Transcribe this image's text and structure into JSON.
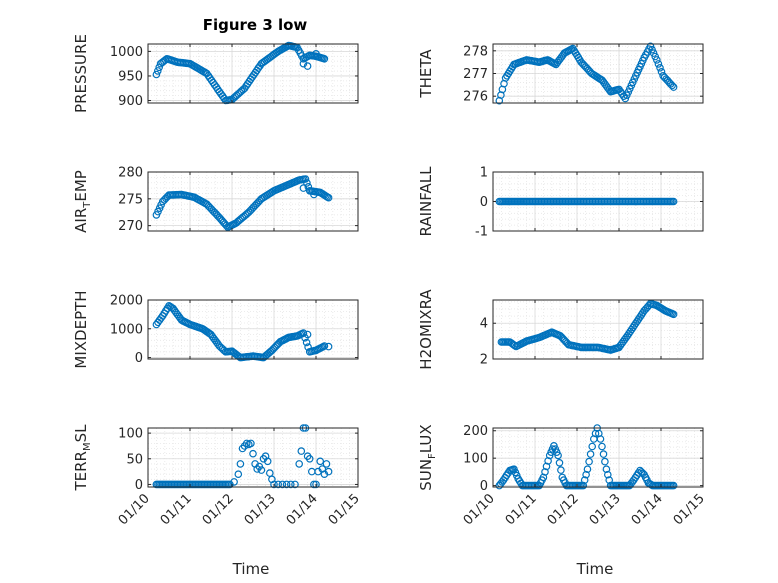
{
  "figure": {
    "title": "Figure 3 low",
    "marker_color": "#0072BD",
    "grid_color": "#d9d9d9",
    "axis_color": "#262626"
  },
  "chart_data": [
    {
      "type": "scatter",
      "ylabel": "PRESSURE",
      "ylim": [
        895,
        1015
      ],
      "yticks": [
        900,
        950,
        1000
      ],
      "xlim": [
        0,
        5
      ],
      "xticks": [
        "01/10",
        "01/11",
        "01/12",
        "01/13",
        "01/14",
        "01/15"
      ],
      "show_xticklabels": false,
      "knots": [
        [
          0.2,
          953
        ],
        [
          0.3,
          975
        ],
        [
          0.45,
          985
        ],
        [
          0.7,
          978
        ],
        [
          1.0,
          975
        ],
        [
          1.4,
          955
        ],
        [
          1.7,
          918
        ],
        [
          1.85,
          900
        ],
        [
          2.0,
          902
        ],
        [
          2.3,
          925
        ],
        [
          2.7,
          975
        ],
        [
          3.1,
          1000
        ],
        [
          3.35,
          1012
        ],
        [
          3.55,
          1008
        ],
        [
          3.7,
          985
        ],
        [
          3.85,
          992
        ],
        [
          4.0,
          990
        ],
        [
          4.2,
          985
        ]
      ],
      "extra_points": [
        [
          3.7,
          975
        ],
        [
          3.8,
          970
        ],
        [
          4.0,
          995
        ]
      ],
      "points_per_day": 28
    },
    {
      "type": "scatter",
      "ylabel": "THETA",
      "ylim": [
        275.7,
        278.3
      ],
      "yticks": [
        276,
        277,
        278
      ],
      "xlim": [
        0,
        5
      ],
      "xticks": [
        "01/10",
        "01/11",
        "01/12",
        "01/13",
        "01/14",
        "01/15"
      ],
      "show_xticklabels": false,
      "knots": [
        [
          0.15,
          275.8
        ],
        [
          0.3,
          276.8
        ],
        [
          0.5,
          277.4
        ],
        [
          0.8,
          277.6
        ],
        [
          1.1,
          277.5
        ],
        [
          1.3,
          277.6
        ],
        [
          1.5,
          277.4
        ],
        [
          1.7,
          277.9
        ],
        [
          1.9,
          278.1
        ],
        [
          2.1,
          277.5
        ],
        [
          2.35,
          277.0
        ],
        [
          2.6,
          276.7
        ],
        [
          2.8,
          276.2
        ],
        [
          3.0,
          276.3
        ],
        [
          3.15,
          275.9
        ],
        [
          3.4,
          276.9
        ],
        [
          3.6,
          277.7
        ],
        [
          3.75,
          278.2
        ],
        [
          3.9,
          277.6
        ],
        [
          4.05,
          276.9
        ],
        [
          4.3,
          276.4
        ]
      ],
      "extra_points": [],
      "points_per_day": 28
    },
    {
      "type": "scatter",
      "ylabel": "AIR",
      "ylabel_sub": "T",
      "ylabel_tail": "EMP",
      "ylim": [
        269,
        280
      ],
      "yticks": [
        270,
        275,
        280
      ],
      "xlim": [
        0,
        5
      ],
      "xticks": [
        "01/10",
        "01/11",
        "01/12",
        "01/13",
        "01/14",
        "01/15"
      ],
      "show_xticklabels": false,
      "knots": [
        [
          0.2,
          272
        ],
        [
          0.35,
          274.5
        ],
        [
          0.5,
          275.7
        ],
        [
          0.8,
          275.8
        ],
        [
          1.1,
          275.3
        ],
        [
          1.4,
          274
        ],
        [
          1.7,
          271.5
        ],
        [
          1.9,
          269.7
        ],
        [
          2.1,
          270.5
        ],
        [
          2.4,
          272.5
        ],
        [
          2.7,
          275
        ],
        [
          3.0,
          276.5
        ],
        [
          3.3,
          277.5
        ],
        [
          3.6,
          278.5
        ],
        [
          3.75,
          278.7
        ],
        [
          3.85,
          276.5
        ],
        [
          4.1,
          276.2
        ],
        [
          4.3,
          275.2
        ]
      ],
      "extra_points": [
        [
          3.7,
          277
        ],
        [
          3.95,
          275.8
        ]
      ],
      "points_per_day": 28
    },
    {
      "type": "scatter",
      "ylabel": "RAINFALL",
      "ylim": [
        -1,
        1
      ],
      "yticks": [
        -1,
        0,
        1
      ],
      "xlim": [
        0,
        5
      ],
      "xticks": [
        "01/10",
        "01/11",
        "01/12",
        "01/13",
        "01/14",
        "01/15"
      ],
      "show_xticklabels": false,
      "knots": [
        [
          0.15,
          0
        ],
        [
          4.3,
          0
        ]
      ],
      "extra_points": [],
      "points_per_day": 28
    },
    {
      "type": "scatter",
      "ylabel": "MIXDEPTH",
      "ylim": [
        -50,
        2000
      ],
      "yticks": [
        0,
        1000,
        2000
      ],
      "xlim": [
        0,
        5
      ],
      "xticks": [
        "01/10",
        "01/11",
        "01/12",
        "01/13",
        "01/14",
        "01/15"
      ],
      "show_xticklabels": false,
      "knots": [
        [
          0.2,
          1150
        ],
        [
          0.35,
          1450
        ],
        [
          0.5,
          1800
        ],
        [
          0.6,
          1700
        ],
        [
          0.8,
          1300
        ],
        [
          1.0,
          1150
        ],
        [
          1.3,
          1000
        ],
        [
          1.5,
          800
        ],
        [
          1.7,
          400
        ],
        [
          1.85,
          200
        ],
        [
          2.0,
          220
        ],
        [
          2.2,
          0
        ],
        [
          2.5,
          50
        ],
        [
          2.75,
          0
        ],
        [
          2.95,
          250
        ],
        [
          3.15,
          550
        ],
        [
          3.35,
          700
        ],
        [
          3.55,
          750
        ],
        [
          3.7,
          850
        ],
        [
          3.85,
          200
        ],
        [
          4.0,
          250
        ],
        [
          4.2,
          400
        ]
      ],
      "extra_points": [
        [
          3.8,
          800
        ],
        [
          4.3,
          380
        ]
      ],
      "points_per_day": 28
    },
    {
      "type": "scatter",
      "ylabel": "H2OMIXRA",
      "ylim": [
        2,
        5.3
      ],
      "yticks": [
        2,
        4
      ],
      "xlim": [
        0,
        5
      ],
      "xticks": [
        "01/10",
        "01/11",
        "01/12",
        "01/13",
        "01/14",
        "01/15"
      ],
      "show_xticklabels": false,
      "knots": [
        [
          0.2,
          2.95
        ],
        [
          0.4,
          2.95
        ],
        [
          0.55,
          2.7
        ],
        [
          0.8,
          3.0
        ],
        [
          1.1,
          3.2
        ],
        [
          1.4,
          3.5
        ],
        [
          1.6,
          3.3
        ],
        [
          1.8,
          2.8
        ],
        [
          2.1,
          2.65
        ],
        [
          2.5,
          2.65
        ],
        [
          2.8,
          2.5
        ],
        [
          3.0,
          2.65
        ],
        [
          3.2,
          3.3
        ],
        [
          3.4,
          4.0
        ],
        [
          3.6,
          4.7
        ],
        [
          3.75,
          5.1
        ],
        [
          3.9,
          5.0
        ],
        [
          4.1,
          4.7
        ],
        [
          4.3,
          4.5
        ]
      ],
      "extra_points": [],
      "points_per_day": 28
    },
    {
      "type": "scatter",
      "ylabel": "TERR",
      "ylabel_sub": "M",
      "ylabel_tail": "SL",
      "ylim": [
        -5,
        110
      ],
      "yticks": [
        0,
        50,
        100
      ],
      "xlim": [
        0,
        5
      ],
      "xticks": [
        "01/10",
        "01/11",
        "01/12",
        "01/13",
        "01/14",
        "01/15"
      ],
      "show_xticklabels": true,
      "knots": [
        [
          0.2,
          0
        ],
        [
          1.95,
          0
        ]
      ],
      "extra_points": [
        [
          2.05,
          5
        ],
        [
          2.15,
          20
        ],
        [
          2.2,
          40
        ],
        [
          2.25,
          70
        ],
        [
          2.3,
          75
        ],
        [
          2.35,
          80
        ],
        [
          2.4,
          78
        ],
        [
          2.45,
          80
        ],
        [
          2.5,
          60
        ],
        [
          2.55,
          40
        ],
        [
          2.6,
          30
        ],
        [
          2.65,
          35
        ],
        [
          2.7,
          28
        ],
        [
          2.75,
          50
        ],
        [
          2.8,
          55
        ],
        [
          2.85,
          45
        ],
        [
          2.9,
          22
        ],
        [
          2.95,
          10
        ],
        [
          3.0,
          0
        ],
        [
          3.1,
          0
        ],
        [
          3.2,
          0
        ],
        [
          3.3,
          0
        ],
        [
          3.4,
          0
        ],
        [
          3.5,
          0
        ],
        [
          3.6,
          40
        ],
        [
          3.65,
          65
        ],
        [
          3.7,
          110
        ],
        [
          3.75,
          110
        ],
        [
          3.8,
          55
        ],
        [
          3.85,
          50
        ],
        [
          3.9,
          25
        ],
        [
          3.95,
          0
        ],
        [
          4.0,
          0
        ],
        [
          4.05,
          25
        ],
        [
          4.1,
          45
        ],
        [
          4.15,
          30
        ],
        [
          4.2,
          20
        ],
        [
          4.25,
          40
        ],
        [
          4.3,
          25
        ]
      ],
      "points_per_day": 28
    },
    {
      "type": "scatter",
      "ylabel": "SUN",
      "ylabel_sub": "F",
      "ylabel_tail": "LUX",
      "ylim": [
        -5,
        210
      ],
      "yticks": [
        0,
        100,
        200
      ],
      "xlim": [
        0,
        5
      ],
      "xticks": [
        "01/10",
        "01/11",
        "01/12",
        "01/13",
        "01/14",
        "01/15"
      ],
      "show_xticklabels": true,
      "knots": [
        [
          0.15,
          0
        ],
        [
          0.25,
          20
        ],
        [
          0.4,
          55
        ],
        [
          0.5,
          60
        ],
        [
          0.6,
          25
        ],
        [
          0.7,
          0
        ],
        [
          1.1,
          0
        ],
        [
          1.2,
          30
        ],
        [
          1.35,
          110
        ],
        [
          1.45,
          145
        ],
        [
          1.55,
          110
        ],
        [
          1.65,
          30
        ],
        [
          1.75,
          0
        ],
        [
          2.15,
          0
        ],
        [
          2.25,
          60
        ],
        [
          2.4,
          170
        ],
        [
          2.48,
          210
        ],
        [
          2.56,
          170
        ],
        [
          2.7,
          60
        ],
        [
          2.8,
          0
        ],
        [
          3.25,
          0
        ],
        [
          3.35,
          20
        ],
        [
          3.5,
          55
        ],
        [
          3.6,
          40
        ],
        [
          3.7,
          10
        ],
        [
          3.8,
          0
        ],
        [
          4.3,
          0
        ]
      ],
      "extra_points": [],
      "points_per_day": 28
    }
  ],
  "xlabel": "Time"
}
